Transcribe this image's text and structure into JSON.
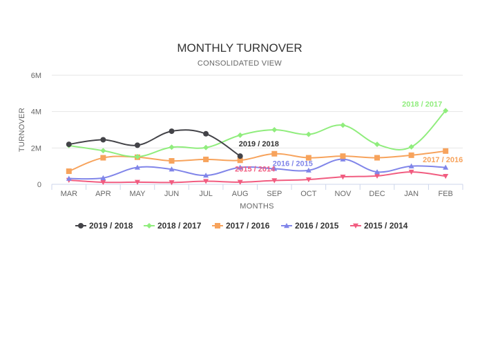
{
  "chart_data": {
    "type": "line",
    "title": "MONTHLY TURNOVER",
    "subtitle": "CONSOLIDATED VIEW",
    "xlabel": "MONTHS",
    "ylabel": "TURNOVER",
    "ylim": [
      0,
      6000000
    ],
    "yticks": [
      0,
      2000000,
      4000000,
      6000000
    ],
    "ytick_labels": [
      "0",
      "2M",
      "4M",
      "6M"
    ],
    "categories": [
      "MAR",
      "APR",
      "MAY",
      "JUN",
      "JUL",
      "AUG",
      "SEP",
      "OCT",
      "NOV",
      "DEC",
      "JAN",
      "FEB"
    ],
    "legend_position": "bottom",
    "series": [
      {
        "name": "2019 / 2018",
        "color": "#434348",
        "marker": "circle",
        "values": [
          2200000,
          2450000,
          2150000,
          2920000,
          2780000,
          1550000,
          null,
          null,
          null,
          null,
          null,
          null
        ],
        "label": "2019 / 2018"
      },
      {
        "name": "2018 / 2017",
        "color": "#90ed7d",
        "marker": "diamond",
        "values": [
          2130000,
          1850000,
          1520000,
          2040000,
          2020000,
          2700000,
          3000000,
          2750000,
          3250000,
          2200000,
          2060000,
          4050000
        ],
        "label": "2018 / 2017"
      },
      {
        "name": "2017 / 2016",
        "color": "#f7a35c",
        "marker": "square",
        "values": [
          720000,
          1460000,
          1490000,
          1290000,
          1370000,
          1320000,
          1680000,
          1460000,
          1550000,
          1460000,
          1600000,
          1830000
        ],
        "label": "2017 / 2016"
      },
      {
        "name": "2016 / 2015",
        "color": "#8085e9",
        "marker": "triangle",
        "values": [
          320000,
          350000,
          930000,
          830000,
          490000,
          930000,
          860000,
          770000,
          1380000,
          680000,
          1000000,
          930000
        ],
        "label": "2016 / 2015"
      },
      {
        "name": "2015 / 2014",
        "color": "#f15c80",
        "marker": "triangle-down",
        "values": [
          230000,
          110000,
          120000,
          100000,
          170000,
          120000,
          210000,
          260000,
          410000,
          460000,
          680000,
          450000
        ],
        "label": "2015 / 2014"
      }
    ]
  }
}
